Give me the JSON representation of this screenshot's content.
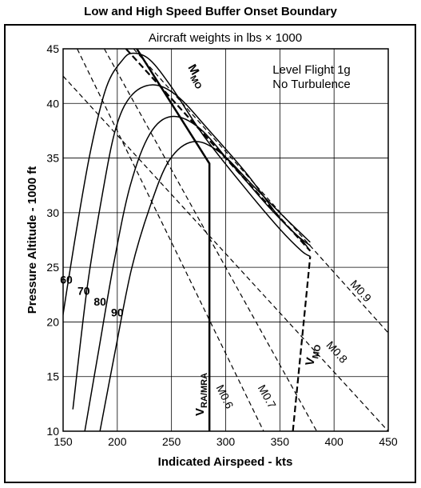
{
  "chart_data": {
    "type": "line",
    "title": "Low and High Speed Buffer Onset Boundary",
    "subtitle": "Aircraft weights in lbs × 1000",
    "xlabel": "Indicated Airspeed - kts",
    "ylabel": "Pressure Altitude - 1000 ft",
    "xlim": [
      150,
      450
    ],
    "ylim": [
      10,
      45
    ],
    "x_ticks": [
      150,
      200,
      250,
      300,
      350,
      400,
      450
    ],
    "y_ticks": [
      10,
      15,
      20,
      25,
      30,
      35,
      40,
      45
    ],
    "grid": true,
    "annotations": [
      {
        "text": "Level Flight 1g"
      },
      {
        "text": "No Turbulence"
      }
    ],
    "series": [
      {
        "name": "60",
        "x": [
          145,
          160,
          175,
          190,
          205,
          215,
          230,
          250,
          280,
          320,
          350,
          370,
          378
        ],
        "y": [
          17.5,
          27,
          35.5,
          41.5,
          44,
          44.6,
          44,
          41.5,
          37,
          32,
          28.5,
          26.5,
          26
        ]
      },
      {
        "name": "70",
        "x": [
          159,
          172,
          185,
          198,
          212,
          232,
          255,
          285,
          320,
          350,
          370,
          378
        ],
        "y": [
          12,
          23,
          31,
          37.5,
          40.6,
          41.7,
          40.7,
          37.5,
          33.5,
          29.5,
          27.5,
          26.5
        ]
      },
      {
        "name": "80",
        "x": [
          170,
          183,
          197,
          212,
          230,
          250,
          275,
          305,
          340,
          365,
          378
        ],
        "y": [
          10,
          17.5,
          25.5,
          32.5,
          37.2,
          38.8,
          37.8,
          34.5,
          30.5,
          28,
          27
        ]
      },
      {
        "name": "90",
        "x": [
          184,
          198,
          213,
          230,
          248,
          270,
          295,
          325,
          355,
          378
        ],
        "y": [
          10,
          17.3,
          24.8,
          30.5,
          34.8,
          36.5,
          35.5,
          32.5,
          29.5,
          27.3
        ]
      }
    ],
    "curve_labels": [
      {
        "text": "60",
        "x": 153,
        "y": 23.5
      },
      {
        "text": "70",
        "x": 169,
        "y": 22.5
      },
      {
        "text": "80",
        "x": 184,
        "y": 21.5
      },
      {
        "text": "90",
        "x": 200,
        "y": 20.5
      }
    ],
    "boundaries": {
      "vra_mra": {
        "label_main": "V",
        "label_sub": "RA/M",
        "label_sub2": "RA",
        "x": [
          218,
          285,
          285
        ],
        "y": [
          45,
          34.5,
          10
        ]
      },
      "mmo": {
        "label_main": "M",
        "label_sub": "MO",
        "x": [
          208,
          378
        ],
        "y": [
          45,
          26.5
        ]
      },
      "vmo": {
        "label_main": "V",
        "label_sub": "MO",
        "x": [
          362,
          378
        ],
        "y": [
          10,
          26
        ]
      }
    },
    "mach_lines": [
      {
        "label": "M0.6",
        "x": [
          163,
          335
        ],
        "y": [
          45,
          10
        ]
      },
      {
        "label": "M0.7",
        "x": [
          188,
          384
        ],
        "y": [
          45,
          10
        ]
      },
      {
        "label": "M0.8",
        "x": [
          150,
          450
        ],
        "y": [
          42.5,
          10
        ]
      },
      {
        "label": "M0.9",
        "x": [
          215,
          450
        ],
        "y": [
          45,
          19
        ]
      }
    ]
  }
}
